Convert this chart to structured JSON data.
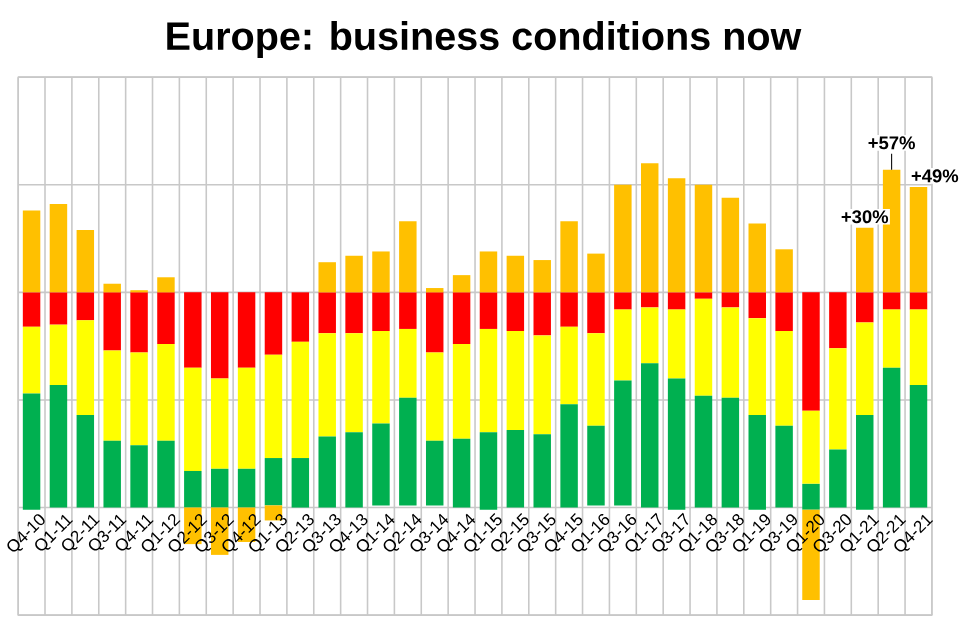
{
  "chart_data": {
    "type": "bar",
    "title": "Europe: business conditions now",
    "stacked": true,
    "grid": true,
    "tick_labels": "x",
    "ylim": [
      -150,
      100
    ],
    "yticks": [
      {
        "value": -150,
        "label": null
      },
      {
        "value": -100,
        "label": null
      },
      {
        "value": -50,
        "label": null
      },
      {
        "value": 0,
        "label": null
      },
      {
        "value": 50,
        "label": null
      },
      {
        "value": 100,
        "label": null
      }
    ],
    "categories": [
      "Q4-10",
      "Q1-11",
      "Q2-11",
      "Q3-11",
      "Q4-11",
      "Q1-12",
      "Q2-12",
      "Q3-12",
      "Q4-12",
      "Q1-13",
      "Q2-13",
      "Q3-13",
      "Q4-13",
      "Q1-14",
      "Q2-14",
      "Q3-14",
      "Q4-14",
      "Q1-15",
      "Q2-15",
      "Q3-15",
      "Q4-15",
      "Q1-16",
      "Q3-16",
      "Q1-17",
      "Q3-17",
      "Q1-18",
      "Q3-18",
      "Q1-19",
      "Q3-19",
      "Q1-20",
      "Q3-20",
      "Q1-21",
      "Q2-21",
      "Q4-21"
    ],
    "series": [
      {
        "color": "#ff0000",
        "values": [
          -16,
          -15,
          -13,
          -27,
          -28,
          -24,
          -35,
          -40,
          -35,
          -29,
          -23,
          -19,
          -19,
          -18,
          -17,
          -28,
          -24,
          -17,
          -18,
          -20,
          -16,
          -19,
          -8,
          -7,
          -8,
          -3,
          -7,
          -12,
          -18,
          -55,
          -26,
          -14,
          -8,
          -8
        ]
      },
      {
        "color": "#ffff00",
        "values": [
          -31,
          -28,
          -44,
          -42,
          -43,
          -45,
          -48,
          -42,
          -47,
          -48,
          -54,
          -48,
          -46,
          -43,
          -32,
          -41,
          -44,
          -48,
          -46,
          -46,
          -36,
          -43,
          -33,
          -26,
          -32,
          -45,
          -42,
          -45,
          -44,
          -34,
          -47,
          -43,
          -27,
          -35
        ]
      },
      {
        "color": "#00b050",
        "values": [
          -54,
          -57,
          -43,
          -31,
          -29,
          -31,
          -17,
          -18,
          -18,
          -22,
          -23,
          -33,
          -35,
          -38,
          -50,
          -30,
          -32,
          -36,
          -36,
          -34,
          -48,
          -37,
          -58,
          -67,
          -61,
          -52,
          -51,
          -44,
          -38,
          -12,
          -27,
          -44,
          -65,
          -57
        ]
      },
      {
        "color": "#ffc000",
        "values": [
          38,
          41,
          29,
          4,
          1,
          7,
          -17,
          -22,
          -16,
          -7,
          0,
          14,
          17,
          19,
          33,
          2,
          8,
          19,
          17,
          15,
          33,
          18,
          50,
          60,
          53,
          50,
          44,
          32,
          20,
          -42,
          0,
          30,
          57,
          49
        ],
        "value_labels": [
          null,
          null,
          null,
          null,
          null,
          null,
          null,
          null,
          null,
          null,
          null,
          null,
          null,
          null,
          null,
          null,
          null,
          null,
          null,
          null,
          null,
          null,
          null,
          null,
          null,
          null,
          null,
          null,
          null,
          null,
          null,
          "+30%",
          "+57%",
          "+49%"
        ]
      }
    ]
  }
}
